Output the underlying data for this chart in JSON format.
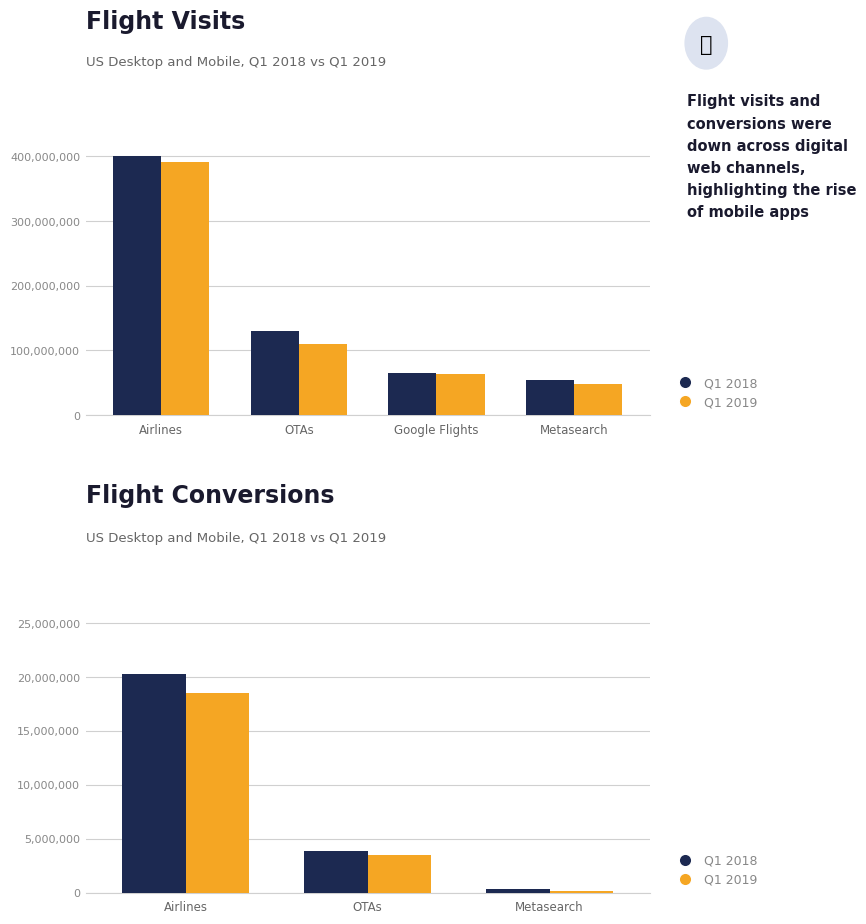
{
  "fig_width": 8.84,
  "fig_height": 10.78,
  "bg_color": "#ffffff",
  "visits_title": "Flight Visits",
  "visits_subtitle": "US Desktop and Mobile, Q1 2018 vs Q1 2019",
  "visits_categories": [
    "Airlines",
    "OTAs",
    "Google Flights",
    "Metasearch"
  ],
  "visits_q1_2018": [
    400000000,
    130000000,
    65000000,
    55000000
  ],
  "visits_q1_2019": [
    392000000,
    110000000,
    63000000,
    48000000
  ],
  "visits_ylim": [
    0,
    450000000
  ],
  "visits_ytick_vals": [
    0,
    100000000,
    200000000,
    300000000,
    400000000
  ],
  "visits_ytick_labels": [
    "0",
    "100,000,000",
    "200,000,000",
    "300,000,000",
    "400,000,000"
  ],
  "conv_title": "Flight Conversions",
  "conv_subtitle": "US Desktop and Mobile, Q1 2018 vs Q1 2019",
  "conv_categories": [
    "Airlines",
    "OTAs",
    "Metasearch"
  ],
  "conv_q1_2018": [
    20300000,
    3900000,
    300000
  ],
  "conv_q1_2019": [
    18500000,
    3500000,
    200000
  ],
  "conv_ylim": [
    0,
    27000000
  ],
  "conv_ytick_vals": [
    0,
    5000000,
    10000000,
    15000000,
    20000000,
    25000000
  ],
  "conv_ytick_labels": [
    "0",
    "5,000,000",
    "10,000,000",
    "15,000,000",
    "20,000,000",
    "25,000,000"
  ],
  "color_2018": "#1c2951",
  "color_2019": "#f5a623",
  "bar_width": 0.35,
  "grid_color": "#d0d0d0",
  "tick_color": "#888888",
  "title_color": "#1a1a2e",
  "subtitle_color": "#666666",
  "label_color": "#666666",
  "legend_label_2018": "Q1 2018",
  "legend_label_2019": "Q1 2019",
  "annotation_text": "Flight visits and\nconversions were\ndown across digital\nweb channels,\nhighlighting the rise\nof mobile apps",
  "annotation_color": "#1a1a2e"
}
